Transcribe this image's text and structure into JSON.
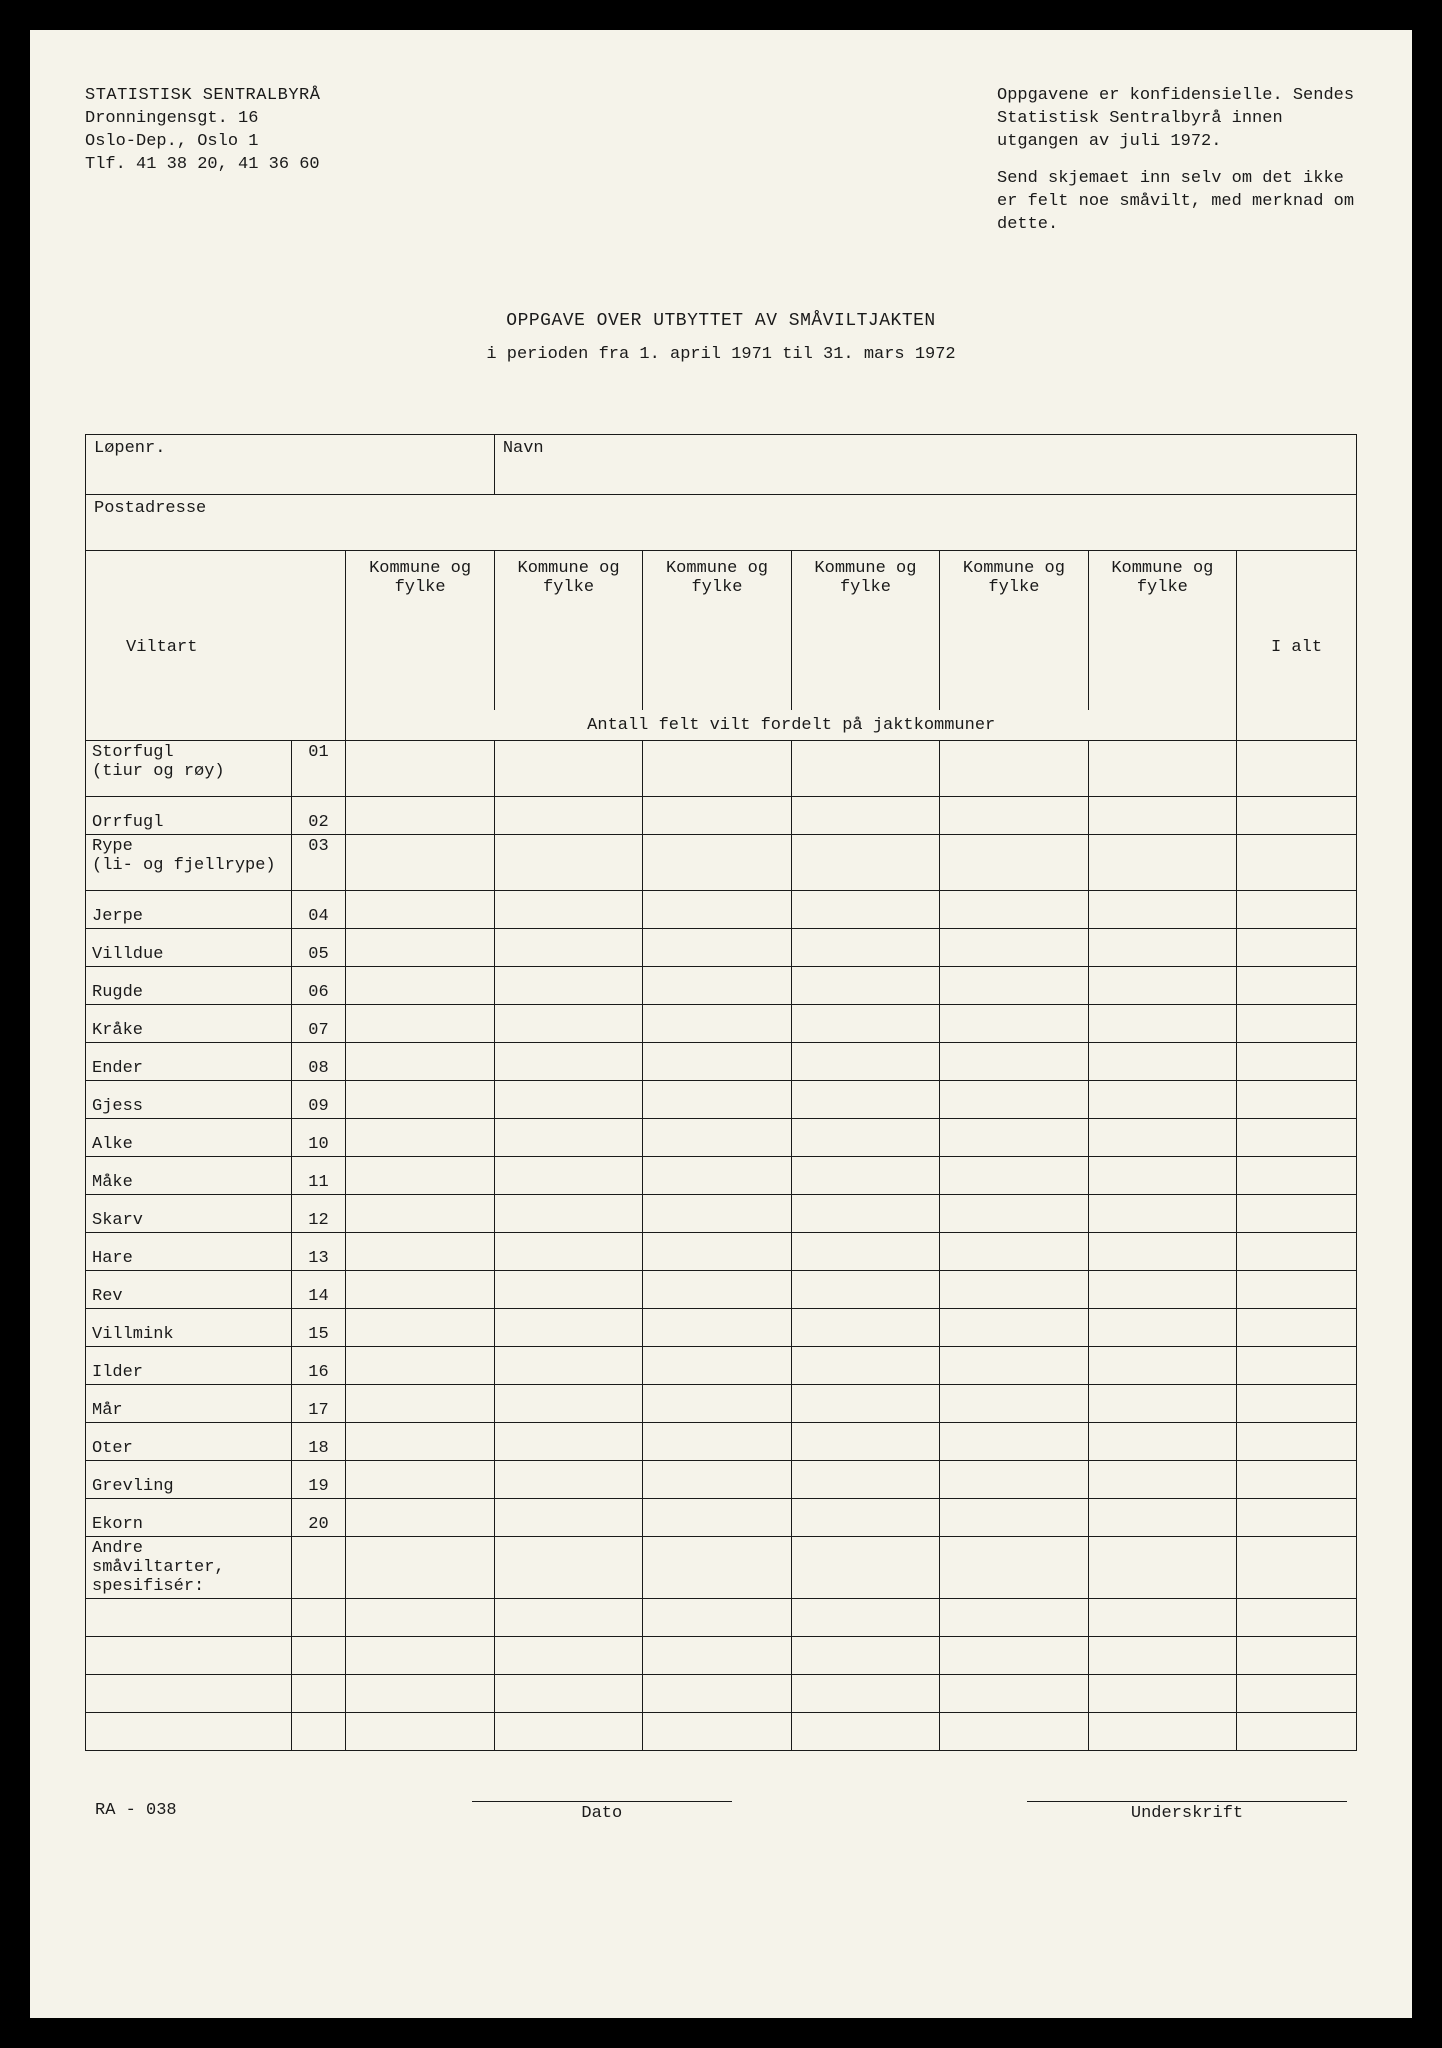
{
  "header": {
    "org_name": "STATISTISK SENTRALBYRÅ",
    "address1": "Dronningensgt. 16",
    "address2": "Oslo-Dep., Oslo 1",
    "phone": "Tlf. 41 38 20, 41 36 60",
    "notice1": "Oppgavene er konfidensielle. Sendes Statistisk Sentralbyrå innen utgangen av juli 1972.",
    "notice2": "Send skjemaet inn selv om det ikke er felt noe småvilt, med merknad om dette."
  },
  "title": {
    "main": "OPPGAVE OVER UTBYTTET AV SMÅVILTJAKTEN",
    "sub": "i perioden fra 1. april 1971 til 31. mars 1972"
  },
  "fields": {
    "lopenr": "Løpenr.",
    "navn": "Navn",
    "postadresse": "Postadresse",
    "viltart": "Viltart",
    "kommune": "Kommune og fylke",
    "ialt": "I alt",
    "spanning": "Antall felt vilt fordelt på jaktkommuner"
  },
  "species": [
    {
      "name": "Storfugl\n(tiur og røy)",
      "code": "01",
      "tall": true
    },
    {
      "name": "Orrfugl",
      "code": "02"
    },
    {
      "name": "Rype\n(li- og fjellrype)",
      "code": "03",
      "tall": true
    },
    {
      "name": "Jerpe",
      "code": "04"
    },
    {
      "name": "Villdue",
      "code": "05"
    },
    {
      "name": "Rugde",
      "code": "06"
    },
    {
      "name": "Kråke",
      "code": "07"
    },
    {
      "name": "Ender",
      "code": "08"
    },
    {
      "name": "Gjess",
      "code": "09"
    },
    {
      "name": "Alke",
      "code": "10"
    },
    {
      "name": "Måke",
      "code": "11"
    },
    {
      "name": "Skarv",
      "code": "12"
    },
    {
      "name": "Hare",
      "code": "13"
    },
    {
      "name": "Rev",
      "code": "14"
    },
    {
      "name": "Villmink",
      "code": "15"
    },
    {
      "name": "Ilder",
      "code": "16"
    },
    {
      "name": "Mår",
      "code": "17"
    },
    {
      "name": "Oter",
      "code": "18"
    },
    {
      "name": "Grevling",
      "code": "19"
    },
    {
      "name": "Ekorn",
      "code": "20"
    },
    {
      "name": "Andre småviltarter,\nspesifisér:",
      "code": "",
      "tall": true
    },
    {
      "name": "",
      "code": ""
    },
    {
      "name": "",
      "code": ""
    },
    {
      "name": "",
      "code": ""
    },
    {
      "name": "",
      "code": ""
    }
  ],
  "footer": {
    "form_id": "RA - 038",
    "dato": "Dato",
    "underskrift": "Underskrift"
  },
  "layout": {
    "col_widths": {
      "species": "180px",
      "code": "48px",
      "kommune": "130px",
      "ialt": "105px"
    }
  }
}
